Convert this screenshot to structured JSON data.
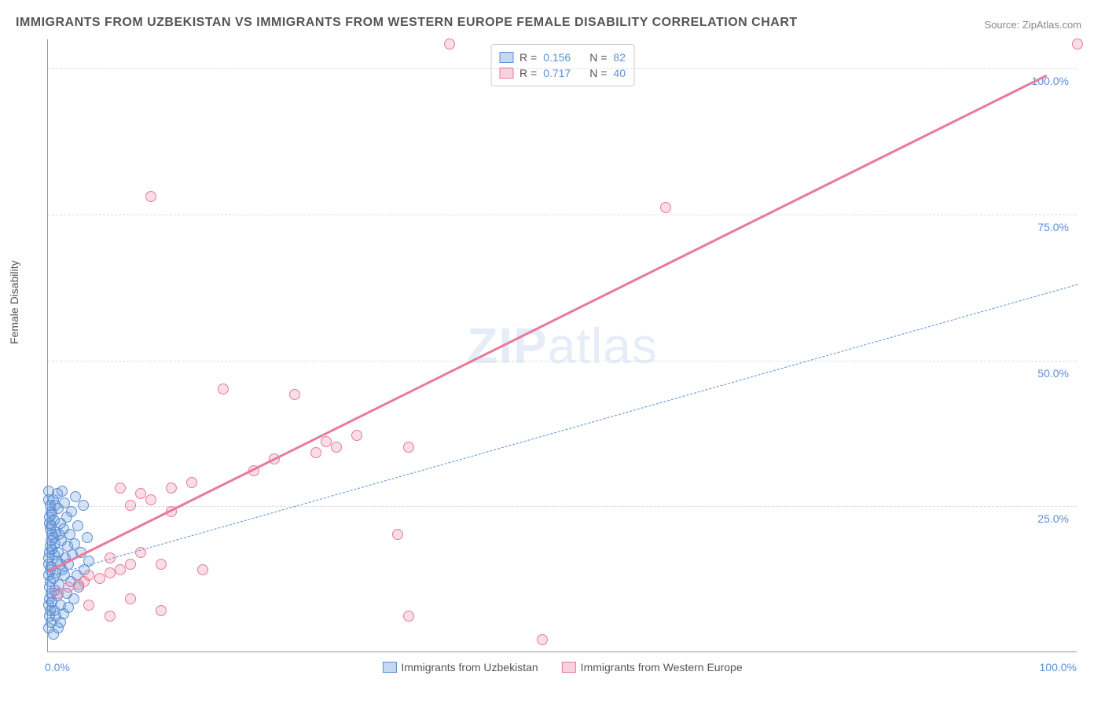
{
  "title": "IMMIGRANTS FROM UZBEKISTAN VS IMMIGRANTS FROM WESTERN EUROPE FEMALE DISABILITY CORRELATION CHART",
  "source": "Source: ZipAtlas.com",
  "ylabel": "Female Disability",
  "watermark_bold": "ZIP",
  "watermark_rest": "atlas",
  "chart": {
    "type": "scatter",
    "xlim": [
      0,
      100
    ],
    "ylim": [
      0,
      105
    ],
    "background_color": "#ffffff",
    "grid_color": "#dddddd",
    "axis_color": "#999999",
    "tick_color": "#5b8fd6",
    "yticks": [
      25,
      50,
      75,
      100
    ],
    "ytick_labels": [
      "25.0%",
      "50.0%",
      "75.0%",
      "100.0%"
    ],
    "xtick_min_label": "0.0%",
    "xtick_max_label": "100.0%",
    "marker_radius": 7,
    "marker_stroke": 1.5,
    "marker_fill_opacity": 0.25
  },
  "series": [
    {
      "key": "uzbekistan",
      "label": "Immigrants from Uzbekistan",
      "color": "#5b8fd6",
      "r_label": "R =",
      "r_value": "0.156",
      "n_label": "N =",
      "n_value": "82",
      "trend": {
        "x1": 0,
        "y1": 13,
        "x2": 100,
        "y2": 63,
        "width": 1.5,
        "dash": "5,4"
      },
      "points": [
        [
          0.5,
          3
        ],
        [
          1,
          4
        ],
        [
          1.2,
          5
        ],
        [
          0.8,
          6
        ],
        [
          1.5,
          6.5
        ],
        [
          0.6,
          7
        ],
        [
          2,
          7.5
        ],
        [
          1.2,
          8
        ],
        [
          0.4,
          8.5
        ],
        [
          2.5,
          9
        ],
        [
          0.9,
          9.5
        ],
        [
          1.8,
          10
        ],
        [
          0.7,
          10.5
        ],
        [
          3,
          11
        ],
        [
          1.1,
          11.5
        ],
        [
          2.2,
          12
        ],
        [
          0.5,
          12.5
        ],
        [
          1.6,
          13
        ],
        [
          2.8,
          13
        ],
        [
          0.8,
          13.5
        ],
        [
          1.4,
          14
        ],
        [
          3.5,
          14
        ],
        [
          0.3,
          14.5
        ],
        [
          2,
          15
        ],
        [
          1.2,
          15
        ],
        [
          0.9,
          15.5
        ],
        [
          4,
          15.5
        ],
        [
          1.7,
          16
        ],
        [
          0.6,
          16.5
        ],
        [
          2.4,
          16.5
        ],
        [
          1,
          17
        ],
        [
          3.2,
          17
        ],
        [
          0.4,
          17.5
        ],
        [
          1.9,
          18
        ],
        [
          0.7,
          18.5
        ],
        [
          2.6,
          18.5
        ],
        [
          1.3,
          19
        ],
        [
          0.5,
          19.5
        ],
        [
          3.8,
          19.5
        ],
        [
          1.1,
          20
        ],
        [
          2.1,
          20
        ],
        [
          0.8,
          20.5
        ],
        [
          1.5,
          21
        ],
        [
          0.3,
          21.5
        ],
        [
          2.9,
          21.5
        ],
        [
          1.2,
          22
        ],
        [
          0.6,
          22.5
        ],
        [
          1.8,
          23
        ],
        [
          0.4,
          23.5
        ],
        [
          2.3,
          24
        ],
        [
          1,
          24.5
        ],
        [
          3.4,
          25
        ],
        [
          0.7,
          25
        ],
        [
          1.6,
          25.5
        ],
        [
          0.5,
          26
        ],
        [
          2.7,
          26.5
        ],
        [
          0.9,
          27
        ],
        [
          1.4,
          27.5
        ],
        [
          0.2,
          12
        ],
        [
          0.3,
          10
        ],
        [
          0.1,
          8
        ],
        [
          0.15,
          6
        ],
        [
          0.05,
          4
        ],
        [
          0.2,
          14
        ],
        [
          0.1,
          16
        ],
        [
          0.25,
          18
        ],
        [
          0.35,
          20
        ],
        [
          0.15,
          22
        ],
        [
          0.3,
          24
        ],
        [
          0.08,
          13
        ],
        [
          0.12,
          11
        ],
        [
          0.18,
          9
        ],
        [
          0.22,
          7
        ],
        [
          0.28,
          5
        ],
        [
          0.06,
          15
        ],
        [
          0.14,
          17
        ],
        [
          0.32,
          19
        ],
        [
          0.24,
          21
        ],
        [
          0.16,
          23
        ],
        [
          0.2,
          25
        ],
        [
          0.1,
          26
        ],
        [
          0.05,
          27.5
        ]
      ]
    },
    {
      "key": "western_europe",
      "label": "Immigrants from Western Europe",
      "color": "#e87a9a",
      "r_label": "R =",
      "r_value": "0.717",
      "n_label": "N =",
      "n_value": "40",
      "trend": {
        "x1": 0,
        "y1": 14,
        "x2": 97,
        "y2": 99,
        "width": 3,
        "dash": "none"
      },
      "points": [
        [
          1,
          10
        ],
        [
          2,
          11
        ],
        [
          3,
          11.5
        ],
        [
          3.5,
          12
        ],
        [
          4,
          13
        ],
        [
          5,
          12.5
        ],
        [
          6,
          13.5
        ],
        [
          7,
          14
        ],
        [
          8,
          15
        ],
        [
          6,
          16
        ],
        [
          9,
          17
        ],
        [
          4,
          8
        ],
        [
          8,
          9
        ],
        [
          11,
          7
        ],
        [
          7,
          28
        ],
        [
          9,
          27
        ],
        [
          10,
          26
        ],
        [
          12,
          28
        ],
        [
          14,
          29
        ],
        [
          11,
          15
        ],
        [
          17,
          45
        ],
        [
          20,
          31
        ],
        [
          22,
          33
        ],
        [
          24,
          44
        ],
        [
          26,
          34
        ],
        [
          27,
          36
        ],
        [
          28,
          35
        ],
        [
          30,
          37
        ],
        [
          34,
          20
        ],
        [
          35,
          35
        ],
        [
          39,
          104
        ],
        [
          10,
          78
        ],
        [
          60,
          76
        ],
        [
          100,
          104
        ],
        [
          48,
          2
        ],
        [
          6,
          6
        ],
        [
          12,
          24
        ],
        [
          8,
          25
        ],
        [
          15,
          14
        ],
        [
          35,
          6
        ]
      ]
    }
  ]
}
